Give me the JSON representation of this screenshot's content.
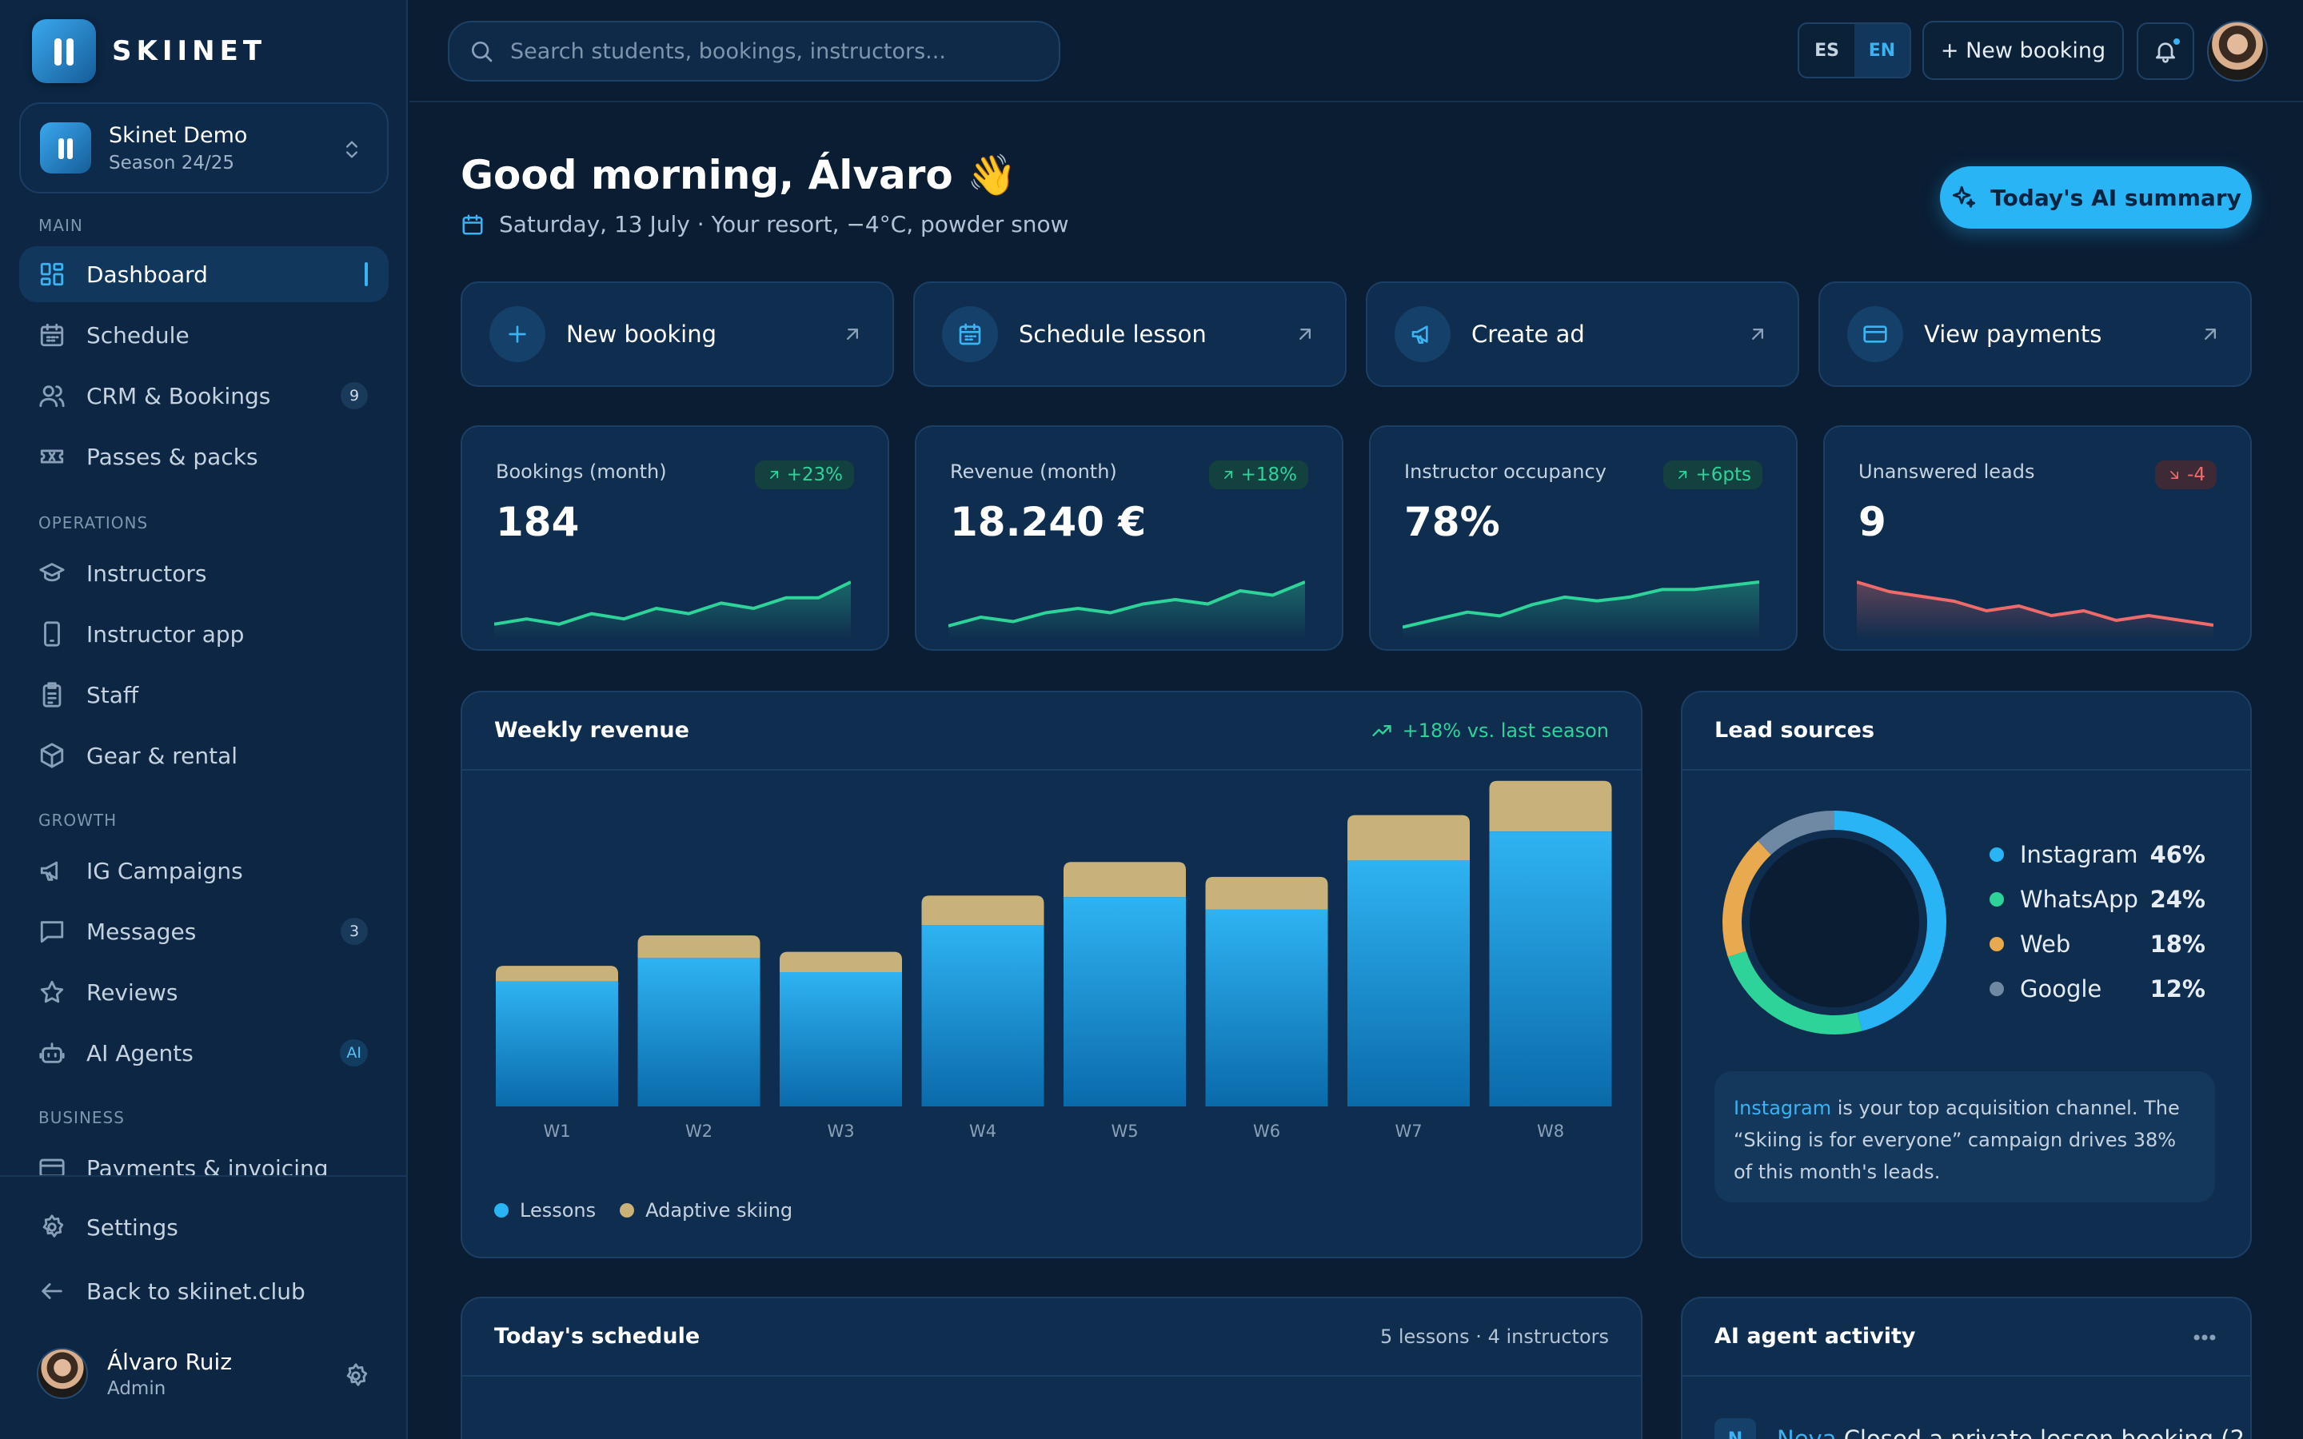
{
  "brand": {
    "name": "SKIINET"
  },
  "workspace": {
    "name": "Skinet Demo",
    "season": "Season 24/25"
  },
  "sidebar": {
    "sections": {
      "main": "MAIN",
      "operations": "OPERATIONS",
      "growth": "GROWTH",
      "business": "BUSINESS"
    },
    "main": [
      {
        "label": "Dashboard",
        "icon": "dashboard-icon",
        "active": true
      },
      {
        "label": "Schedule",
        "icon": "calendar-icon"
      },
      {
        "label": "CRM & Bookings",
        "icon": "users-icon",
        "badge": "9"
      },
      {
        "label": "Passes & packs",
        "icon": "ticket-icon"
      }
    ],
    "operations": [
      {
        "label": "Instructors",
        "icon": "graduation-cap-icon"
      },
      {
        "label": "Instructor app",
        "icon": "phone-icon"
      },
      {
        "label": "Staff",
        "icon": "clipboard-icon"
      },
      {
        "label": "Gear & rental",
        "icon": "box-icon"
      }
    ],
    "growth": [
      {
        "label": "IG Campaigns",
        "icon": "megaphone-icon"
      },
      {
        "label": "Messages",
        "icon": "message-icon",
        "badge": "3"
      },
      {
        "label": "Reviews",
        "icon": "star-icon"
      },
      {
        "label": "AI Agents",
        "icon": "robot-icon",
        "badge": "AI"
      }
    ],
    "business": [
      {
        "label": "Payments & invoicing",
        "icon": "card-icon"
      }
    ],
    "footer": {
      "settings": "Settings",
      "back": "Back to skiinet.club"
    },
    "user": {
      "name": "Álvaro Ruiz",
      "role": "Admin"
    }
  },
  "topbar": {
    "search_placeholder": "Search students, bookings, instructors...",
    "lang": {
      "es": "ES",
      "en": "EN",
      "active": "EN"
    },
    "new_booking": "+ New booking"
  },
  "header": {
    "greeting": "Good morning, Álvaro 👋",
    "subline": "Saturday, 13 July · Your resort, −4°C, powder snow",
    "ai_summary": "Today's AI summary"
  },
  "quick_actions": [
    {
      "label": "New booking",
      "icon": "plus-icon"
    },
    {
      "label": "Schedule lesson",
      "icon": "calendar-icon"
    },
    {
      "label": "Create ad",
      "icon": "megaphone-icon"
    },
    {
      "label": "View payments",
      "icon": "card-icon"
    }
  ],
  "kpis": [
    {
      "label": "Bookings (month)",
      "value": "184",
      "delta": "+23%",
      "trend": "up",
      "spark": [
        3,
        4,
        3,
        5,
        4,
        6,
        5,
        7,
        6,
        8,
        8,
        11
      ],
      "color": "#2ed39a"
    },
    {
      "label": "Revenue (month)",
      "value": "18.240 €",
      "delta": "+18%",
      "trend": "up",
      "spark": [
        3,
        5,
        4,
        6,
        7,
        6,
        8,
        9,
        8,
        11,
        10,
        13
      ],
      "color": "#2ed39a"
    },
    {
      "label": "Instructor occupancy",
      "value": "78%",
      "delta": "+6pts",
      "trend": "up",
      "spark": [
        3,
        5,
        7,
        6,
        9,
        11,
        10,
        11,
        13,
        13,
        14,
        15
      ],
      "color": "#2ed39a"
    },
    {
      "label": "Unanswered leads",
      "value": "9",
      "delta": "-4",
      "trend": "down",
      "spark": [
        12,
        10,
        9,
        8,
        6,
        7,
        5,
        6,
        4,
        5,
        4,
        3
      ],
      "color": "#ef6b6b"
    }
  ],
  "weekly_revenue": {
    "title": "Weekly revenue",
    "meta": "+18% vs. last season",
    "legend": {
      "lessons": "Lessons",
      "adaptive": "Adaptive skiing"
    },
    "colors": {
      "lessons": "#29b4f5",
      "adaptive": "#c9b27a"
    }
  },
  "chart_data": {
    "type": "bar",
    "stacked": true,
    "categories": [
      "W1",
      "W2",
      "W3",
      "W4",
      "W5",
      "W6",
      "W7",
      "W8"
    ],
    "series": [
      {
        "name": "Lessons",
        "values": [
          160,
          190,
          172,
          232,
          268,
          252,
          315,
          352
        ]
      },
      {
        "name": "Adaptive skiing",
        "values": [
          20,
          29,
          26,
          38,
          45,
          42,
          58,
          65
        ]
      }
    ],
    "ylim": [
      0,
      430
    ],
    "grid": false,
    "legend": "bottom-left"
  },
  "lead_sources": {
    "title": "Lead sources",
    "items": [
      {
        "name": "Instagram",
        "pct": 46,
        "label": "46%",
        "color": "#29b4f5"
      },
      {
        "name": "WhatsApp",
        "pct": 24,
        "label": "24%",
        "color": "#2ed39a"
      },
      {
        "name": "Web",
        "pct": 18,
        "label": "18%",
        "color": "#e8a94f"
      },
      {
        "name": "Google",
        "pct": 12,
        "label": "12%",
        "color": "#6f88a3"
      }
    ],
    "insight": {
      "highlight": "Instagram",
      "text": " is your top acquisition channel. The “Skiing is for everyone” campaign drives 38% of this month's leads."
    }
  },
  "schedule": {
    "title": "Today's schedule",
    "meta": "5 lessons · 4 instructors"
  },
  "ai_activity": {
    "title": "AI agent activity",
    "items": [
      {
        "avatar": "N",
        "agent": "Neva",
        "text": "Closed a private lesson booking (2"
      }
    ]
  }
}
